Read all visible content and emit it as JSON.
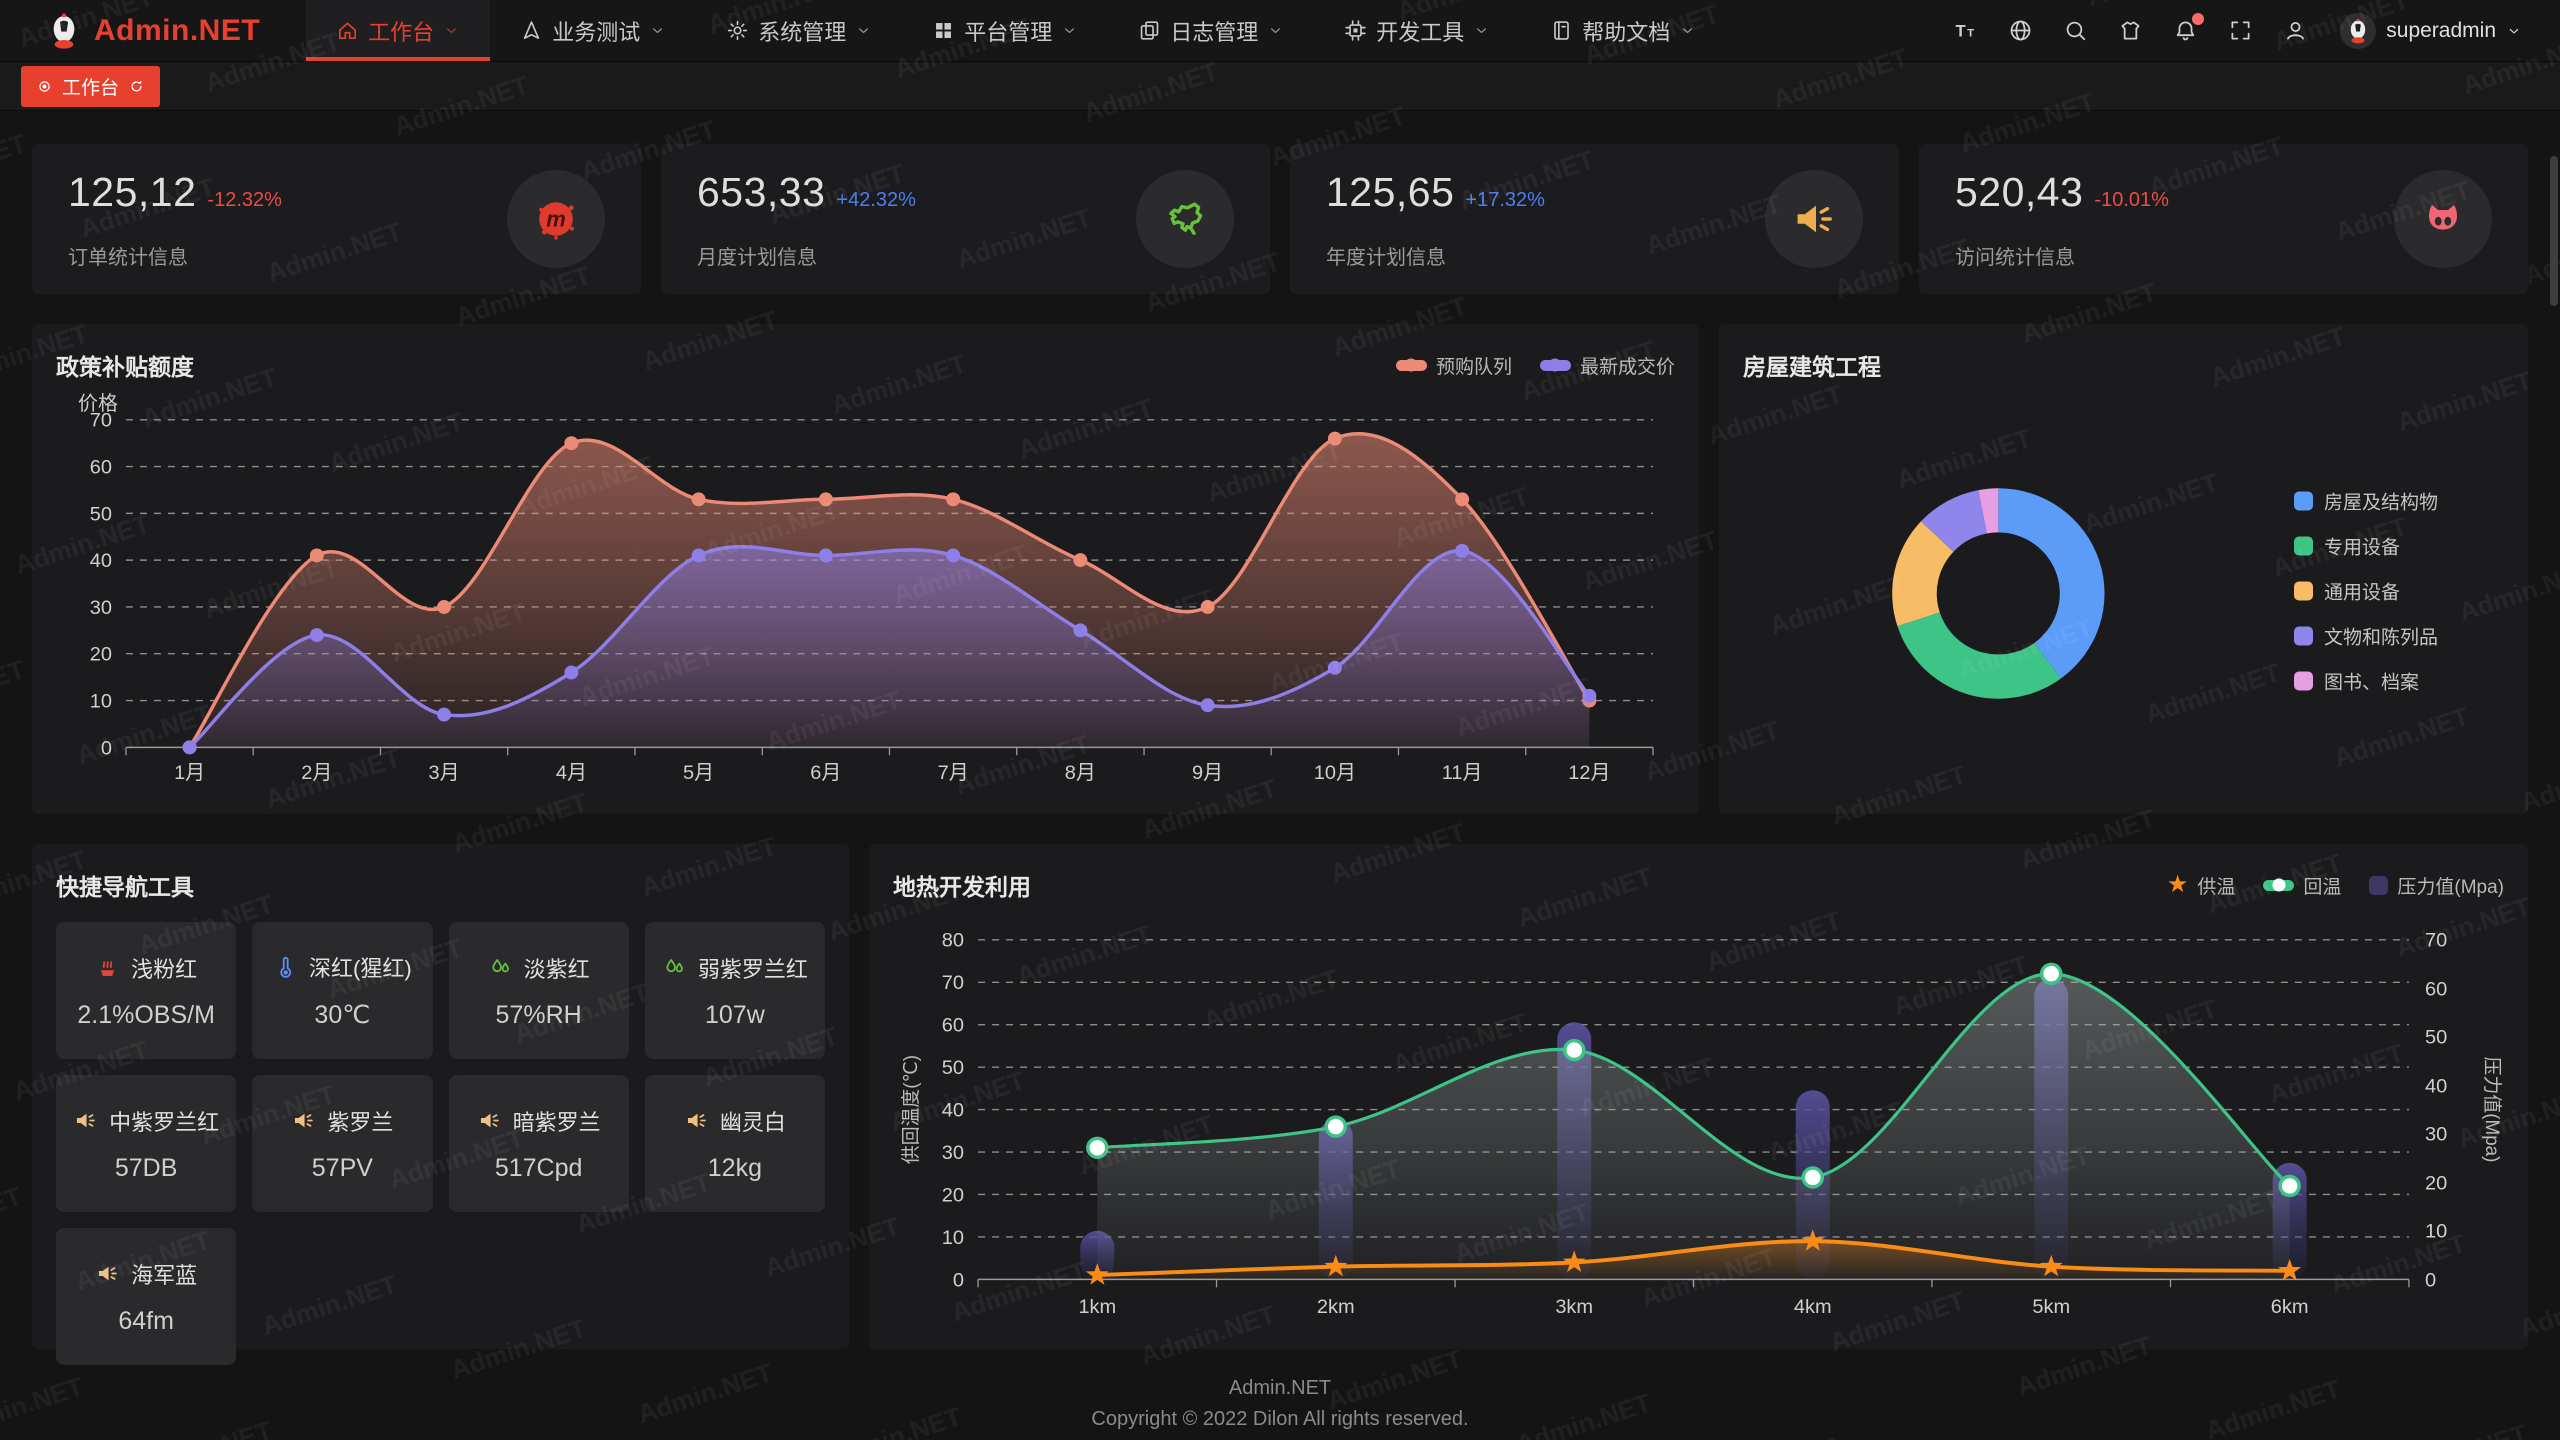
{
  "navbar": {
    "brand": "Admin.NET",
    "menu": [
      {
        "label": "工作台",
        "icon": "home-icon",
        "active": true
      },
      {
        "label": "业务测试",
        "icon": "navigation-icon",
        "active": false
      },
      {
        "label": "系统管理",
        "icon": "gear-icon",
        "active": false
      },
      {
        "label": "平台管理",
        "icon": "grid-icon",
        "active": false
      },
      {
        "label": "日志管理",
        "icon": "copy-icon",
        "active": false
      },
      {
        "label": "开发工具",
        "icon": "cpu-icon",
        "active": false
      },
      {
        "label": "帮助文档",
        "icon": "notebook-icon",
        "active": false
      }
    ],
    "actions": [
      {
        "icon": "font-size-icon",
        "badge": false
      },
      {
        "icon": "language-icon",
        "badge": false
      },
      {
        "icon": "search-icon",
        "badge": false
      },
      {
        "icon": "theme-icon",
        "badge": false
      },
      {
        "icon": "bell-icon",
        "badge": true
      },
      {
        "icon": "fullscreen-icon",
        "badge": false
      },
      {
        "icon": "profile-icon",
        "badge": false
      }
    ],
    "user": "superadmin",
    "accent_color": "#e8402f",
    "badge_color": "#f56c6c"
  },
  "tabbar": {
    "active_tab": "工作台"
  },
  "stat_cards": [
    {
      "value": "125,12",
      "delta": "-12.32%",
      "delta_color": "#ef4b46",
      "label": "订单统计信息",
      "icon": "meetup-icon",
      "icon_color": "#e03a2d"
    },
    {
      "value": "653,33",
      "delta": "+42.32%",
      "delta_color": "#4d7df2",
      "label": "月度计划信息",
      "icon": "china-map-icon",
      "icon_color": "#67c23a"
    },
    {
      "value": "125,65",
      "delta": "+17.32%",
      "delta_color": "#4d7df2",
      "label": "年度计划信息",
      "icon": "volume-icon",
      "icon_color": "#f0ad4e"
    },
    {
      "value": "520,43",
      "delta": "-10.01%",
      "delta_color": "#ef4b46",
      "label": "访问统计信息",
      "icon": "cat-icon",
      "icon_color": "#ef6672"
    }
  ],
  "chart_data": [
    {
      "id": "subsidy",
      "type": "line",
      "title": "政策补贴额度",
      "ylabel": "价格",
      "ylim": [
        0,
        70
      ],
      "grid": "dashed",
      "legend_position": "top-right",
      "categories": [
        "1月",
        "2月",
        "3月",
        "4月",
        "5月",
        "6月",
        "7月",
        "8月",
        "9月",
        "10月",
        "11月",
        "12月"
      ],
      "series": [
        {
          "name": "预购队列",
          "color": "#ec8a75",
          "values": [
            0,
            41,
            30,
            65,
            53,
            53,
            53,
            40,
            30,
            66,
            53,
            10
          ]
        },
        {
          "name": "最新成交价",
          "color": "#8e7fe8",
          "values": [
            0,
            24,
            7,
            16,
            41,
            41,
            41,
            25,
            9,
            17,
            42,
            11
          ]
        }
      ]
    },
    {
      "id": "building",
      "type": "pie",
      "title": "房屋建筑工程",
      "legend_position": "right",
      "labels": [
        "房屋及结构物",
        "专用设备",
        "通用设备",
        "文物和陈列品",
        "图书、档案"
      ],
      "values": [
        40,
        30,
        17,
        10,
        3
      ],
      "colors": [
        "#5b9cf8",
        "#3ec487",
        "#f7bd66",
        "#8f85ea",
        "#e79fe3"
      ],
      "inner_radius_ratio": 0.58
    },
    {
      "id": "geothermal",
      "type": "mixed",
      "title": "地热开发利用",
      "ylabel_left": "供回温度(℃)",
      "ylabel_right": "压力值(Mpa)",
      "ylim_left": [
        0,
        80
      ],
      "ylim_right": [
        0,
        70
      ],
      "grid": "dashed",
      "legend_position": "top-right",
      "categories": [
        "1km",
        "2km",
        "3km",
        "4km",
        "5km",
        "6km"
      ],
      "series": [
        {
          "name": "供温",
          "type": "line",
          "axis": "left",
          "marker": "star",
          "color": "#fa8c16",
          "values": [
            1,
            3,
            4,
            9,
            3,
            2
          ]
        },
        {
          "name": "回温",
          "type": "line",
          "axis": "left",
          "marker": "circle",
          "color": "#3ec487",
          "values": [
            31,
            36,
            54,
            24,
            72,
            22
          ]
        },
        {
          "name": "压力值(Mpa)",
          "type": "bar",
          "axis": "right",
          "marker": "square",
          "color": "#4a4390",
          "values": [
            10,
            33,
            53,
            39,
            62,
            24
          ]
        }
      ]
    }
  ],
  "quick_nav": {
    "title": "快捷导航工具",
    "items": [
      {
        "label": "浅粉红",
        "value": "2.1%OBS/M",
        "icon": "steam-icon",
        "icon_color": "#e2453f"
      },
      {
        "label": "深红(猩红)",
        "value": "30℃",
        "icon": "thermometer-icon",
        "icon_color": "#5b8ff9"
      },
      {
        "label": "淡紫红",
        "value": "57%RH",
        "icon": "drops-icon",
        "icon_color": "#67c23a"
      },
      {
        "label": "弱紫罗兰红",
        "value": "107w",
        "icon": "drops-icon",
        "icon_color": "#67c23a"
      },
      {
        "label": "中紫罗兰红",
        "value": "57DB",
        "icon": "volume-icon",
        "icon_color": "#eec084"
      },
      {
        "label": "紫罗兰",
        "value": "57PV",
        "icon": "volume-icon",
        "icon_color": "#eec084"
      },
      {
        "label": "暗紫罗兰",
        "value": "517Cpd",
        "icon": "volume-icon",
        "icon_color": "#eec084"
      },
      {
        "label": "幽灵白",
        "value": "12kg",
        "icon": "volume-icon",
        "icon_color": "#eec084"
      },
      {
        "label": "海军蓝",
        "value": "64fm",
        "icon": "volume-icon",
        "icon_color": "#eec084"
      }
    ]
  },
  "footer": {
    "brand": "Admin.NET",
    "copyright": "Copyright © 2022 Dilon All rights reserved."
  },
  "watermark": {
    "text": "Admin.NET"
  }
}
